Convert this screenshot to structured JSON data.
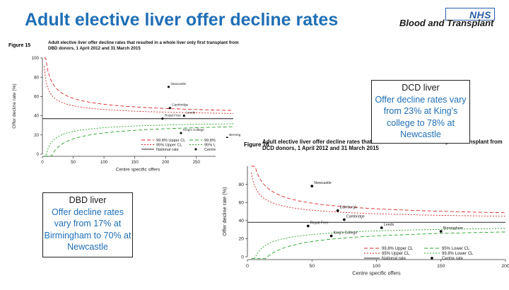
{
  "slide": {
    "title": "Adult elective liver offer decline rates",
    "logo": {
      "text": "NHS",
      "subtitle": "Blood and Transplant"
    }
  },
  "callouts": {
    "dcd": {
      "heading": "DCD liver",
      "body": "Offer decline rates vary from 23% at King's college to 78% at Newcastle"
    },
    "dbd": {
      "heading": "DBD liver",
      "body": "Offer decline rates vary from 17% at Birmingham to 70% at Newcastle"
    }
  },
  "colors": {
    "upper": "#d62728",
    "lower": "#2ca02c",
    "national": "#555555",
    "axis": "#333333",
    "title": "#1f6fb5"
  },
  "chart_data": [
    {
      "type": "scatter",
      "figure_label": "Figure 15",
      "title": "Adult elective liver offer decline rates that resulted in a whole liver only first transplant from DBD donors, 1 April 2012 and 31 March 2015",
      "xlabel": "Centre specific offers",
      "ylabel": "Offer decline rate (%)",
      "xlim": [
        0,
        310
      ],
      "ylim": [
        0,
        100
      ],
      "xticks": [
        0,
        50,
        100,
        150,
        200,
        250,
        300
      ],
      "yticks": [
        0,
        20,
        40,
        60,
        80,
        100
      ],
      "national_rate": 37,
      "points": [
        {
          "name": "Newcastle",
          "x": 205,
          "y": 70
        },
        {
          "name": "Cambridge",
          "x": 207,
          "y": 48
        },
        {
          "name": "Leeds",
          "x": 230,
          "y": 40
        },
        {
          "name": "Royal Free",
          "x": 195,
          "y": 37
        },
        {
          "name": "King's College",
          "x": 225,
          "y": 22
        },
        {
          "name": "Birmingham",
          "x": 300,
          "y": 17
        }
      ],
      "legend": [
        "99.8% Upper CL",
        "95% Upper CL",
        "National rate",
        "99.8% Lower CL",
        "95% Lower CL",
        "Centre rate"
      ]
    },
    {
      "type": "scatter",
      "figure_label": "Figure 16",
      "title": "Adult elective liver offer decline rates that resulted in a whole liver only first transplant from DCD donors, 1 April 2012 and 31 March 2015",
      "xlabel": "Centre specific offers",
      "ylabel": "Offer decline rate (%)",
      "xlim": [
        0,
        200
      ],
      "ylim": [
        0,
        100
      ],
      "xticks": [
        0,
        50,
        100,
        150,
        200
      ],
      "yticks": [
        0,
        20,
        40,
        60,
        80
      ],
      "national_rate": 38,
      "points": [
        {
          "name": "Newcastle",
          "x": 50,
          "y": 78
        },
        {
          "name": "Edinburgh",
          "x": 70,
          "y": 51
        },
        {
          "name": "Cambridge",
          "x": 75,
          "y": 41
        },
        {
          "name": "Royal Free",
          "x": 47,
          "y": 34
        },
        {
          "name": "Leeds",
          "x": 104,
          "y": 32
        },
        {
          "name": "Birmingham",
          "x": 150,
          "y": 28
        },
        {
          "name": "King's College",
          "x": 65,
          "y": 23
        }
      ],
      "legend": [
        "99.8% Upper CL",
        "95% Upper CL",
        "National rate",
        "95% Lower CL",
        "99.8% Lower CL",
        "Centre rate"
      ]
    }
  ]
}
